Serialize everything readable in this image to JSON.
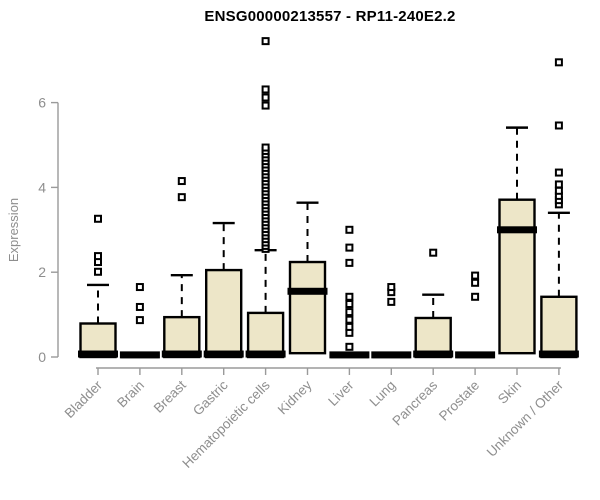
{
  "title": "ENSG00000213557 - RP11-240E2.2",
  "chart_data": {
    "type": "boxplot",
    "title": "ENSG00000213557 - RP11-240E2.2",
    "xlabel": "",
    "ylabel": "Expression",
    "ylim": [
      0,
      7.6
    ],
    "yticks": [
      "0",
      "2",
      "4",
      "6"
    ],
    "grid": false,
    "legend": "none",
    "categories": [
      "Bladder",
      "Brain",
      "Breast",
      "Gastric",
      "Hematopoietic cells",
      "Kidney",
      "Liver",
      "Lung",
      "Pancreas",
      "Prostate",
      "Skin",
      "Unknown / Other"
    ],
    "series": [
      {
        "name": "Bladder",
        "q1": 0,
        "median": 0.07,
        "q3": 0.79,
        "whisker_low": 0,
        "whisker_high": 1.7,
        "outliers": [
          2.01,
          2.24,
          2.38,
          3.26
        ]
      },
      {
        "name": "Brain",
        "q1": 0,
        "median": 0.05,
        "q3": 0.05,
        "whisker_low": 0,
        "whisker_high": 0.05,
        "outliers": [
          0.87,
          1.18,
          1.65
        ]
      },
      {
        "name": "Breast",
        "q1": 0,
        "median": 0.07,
        "q3": 0.94,
        "whisker_low": 0,
        "whisker_high": 1.93,
        "outliers": [
          3.77,
          4.15
        ]
      },
      {
        "name": "Gastric",
        "q1": 0,
        "median": 0.07,
        "q3": 2.05,
        "whisker_low": 0,
        "whisker_high": 3.16,
        "outliers": []
      },
      {
        "name": "Hematopoietic cells",
        "q1": 0,
        "median": 0.07,
        "q3": 1.04,
        "whisker_low": 0,
        "whisker_high": 2.52,
        "outliers": [
          2.55,
          2.62,
          2.7,
          2.78,
          2.86,
          2.94,
          3.02,
          3.1,
          3.18,
          3.26,
          3.34,
          3.42,
          3.5,
          3.58,
          3.66,
          3.74,
          3.82,
          3.9,
          3.98,
          4.06,
          4.14,
          4.22,
          4.3,
          4.38,
          4.46,
          4.54,
          4.62,
          4.7,
          4.78,
          4.86,
          4.94,
          5.93,
          6.12,
          6.31,
          7.45
        ]
      },
      {
        "name": "Kidney",
        "q1": 0.09,
        "median": 1.55,
        "q3": 2.24,
        "whisker_low": 0.09,
        "whisker_high": 3.64,
        "outliers": []
      },
      {
        "name": "Liver",
        "q1": 0,
        "median": 0.05,
        "q3": 0.05,
        "whisker_low": 0,
        "whisker_high": 0.05,
        "outliers": [
          0.24,
          0.57,
          0.71,
          0.88,
          1.06,
          1.25,
          1.42,
          2.22,
          2.58,
          3.0
        ]
      },
      {
        "name": "Lung",
        "q1": 0,
        "median": 0.05,
        "q3": 0.05,
        "whisker_low": 0,
        "whisker_high": 0.05,
        "outliers": [
          1.3,
          1.53,
          1.65
        ]
      },
      {
        "name": "Pancreas",
        "q1": 0,
        "median": 0.07,
        "q3": 0.92,
        "whisker_low": 0,
        "whisker_high": 1.47,
        "outliers": [
          2.46
        ]
      },
      {
        "name": "Prostate",
        "q1": 0,
        "median": 0.05,
        "q3": 0.05,
        "whisker_low": 0,
        "whisker_high": 0.05,
        "outliers": [
          1.42,
          1.75,
          1.92
        ]
      },
      {
        "name": "Skin",
        "q1": 0.09,
        "median": 3.0,
        "q3": 3.71,
        "whisker_low": 0.09,
        "whisker_high": 5.41,
        "outliers": []
      },
      {
        "name": "Unknown / Other",
        "q1": 0,
        "median": 0.07,
        "q3": 1.42,
        "whisker_low": 0,
        "whisker_high": 3.4,
        "outliers": [
          3.6,
          3.7,
          3.8,
          3.92,
          4.07,
          4.35,
          5.46,
          6.95
        ]
      }
    ],
    "colors": {
      "box_fill": "#EDE6C8",
      "box_stroke": "#000000",
      "median": "#000000",
      "whisker": "#000000",
      "outlier_stroke": "#000000",
      "outlier_fill": "#FFFFFF",
      "axis_line": "#9a9a9a",
      "tick_text": "#8e8e8e",
      "title_text": "#000000",
      "background": "#FFFFFF"
    }
  }
}
